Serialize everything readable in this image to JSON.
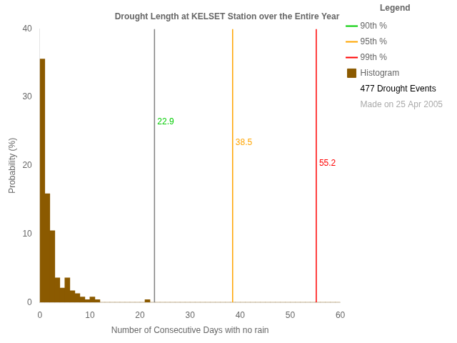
{
  "chart_data": {
    "type": "histogram",
    "title": "Drought Length at KELSET Station over the Entire Year",
    "xlabel": "Number of Consecutive Days with no rain",
    "ylabel": "Probability (%)",
    "name": "Histogram",
    "color": "#8B5A00",
    "bins": [
      0,
      1,
      2,
      3,
      4,
      5,
      6,
      7,
      8,
      9,
      10,
      11,
      12,
      13,
      14,
      15,
      16,
      17,
      18,
      19,
      20,
      21,
      22,
      23,
      24,
      25,
      26,
      27,
      28,
      29,
      30,
      31,
      32,
      33,
      34,
      35,
      36,
      37,
      38,
      39,
      40,
      41,
      42,
      43,
      44,
      45,
      46,
      47,
      48,
      49,
      50,
      51,
      52,
      53,
      54,
      55,
      56,
      57,
      58,
      59,
      60
    ],
    "values": [
      35.6,
      15.9,
      10.5,
      3.6,
      2.1,
      3.6,
      1.7,
      1.3,
      0.8,
      0.4,
      0.8,
      0.4,
      0.0,
      0.0,
      0.0,
      0.0,
      0.0,
      0.0,
      0.0,
      0.0,
      0.0,
      0.4,
      0.0,
      0.0,
      0.0,
      0.0,
      0.0,
      0.0,
      0.0,
      0.0,
      0.0,
      0.0,
      0.0,
      0.0,
      0.0,
      0.0,
      0.0,
      0.0,
      0.0,
      0.0,
      0.0,
      0.0,
      0.0,
      0.0,
      0.0,
      0.0,
      0.0,
      0.0,
      0.0,
      0.0,
      0.0,
      0.0,
      0.0,
      0.0,
      0.0,
      0.0,
      0.0,
      0.0,
      0.0,
      0.0
    ],
    "xlim": [
      0,
      60
    ],
    "ylim": [
      0,
      40
    ],
    "xticks": [
      0,
      10,
      20,
      30,
      40,
      50,
      60
    ],
    "yticks": [
      0,
      10,
      20,
      30,
      40
    ],
    "grid": false,
    "legend": "upper right",
    "legend_title": "Legend",
    "lines": [
      {
        "name": "90th %",
        "x": 22.9,
        "color": "#808080",
        "legend_color": "#00CC00",
        "label_color": "#00CC00"
      },
      {
        "name": "95th %",
        "x": 38.5,
        "color": "#FFA500",
        "legend_color": "#FFA500",
        "label_color": "#FFA500"
      },
      {
        "name": "99th %",
        "x": 55.2,
        "color": "#FF0000",
        "legend_color": "#FF0000",
        "label_color": "#FF0000"
      }
    ],
    "annotations": [
      {
        "text": "477 Drought Events",
        "color": "#000000"
      },
      {
        "text": "Made on 25 Apr 2005",
        "color": "#AAAAAA"
      }
    ]
  }
}
